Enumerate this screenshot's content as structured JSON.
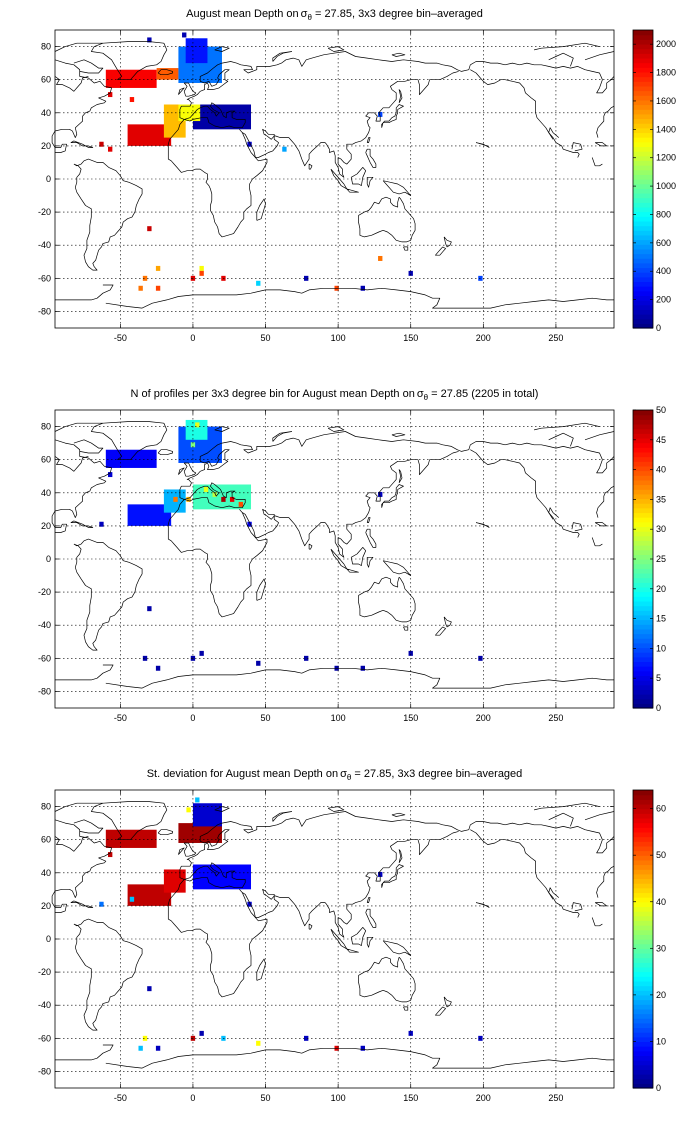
{
  "chart_data": [
    {
      "type": "heatmap",
      "id": "mean",
      "title_main": "August mean Depth on",
      "title_sigma": "σ",
      "title_sub": "θ",
      "title_rest": " = 27.85, 3x3 degree bin–averaged",
      "xlim": [
        -95,
        290
      ],
      "ylim": [
        -90,
        90
      ],
      "xticks": [
        -50,
        0,
        50,
        100,
        150,
        200,
        250
      ],
      "yticks": [
        -80,
        -60,
        -40,
        -20,
        0,
        20,
        40,
        60,
        80
      ],
      "grid": true,
      "colorbar": {
        "min": 0,
        "max": 2100,
        "ticks": [
          0,
          200,
          400,
          600,
          800,
          1000,
          1200,
          1400,
          1600,
          1800,
          2000
        ],
        "colormap": "jet"
      },
      "blocks": [
        {
          "lon": [
            -60,
            -25
          ],
          "lat": [
            55,
            66
          ],
          "value": 1850
        },
        {
          "lon": [
            -25,
            -10
          ],
          "lat": [
            60,
            67
          ],
          "value": 1650
        },
        {
          "lon": [
            -10,
            20
          ],
          "lat": [
            58,
            80
          ],
          "value": 500
        },
        {
          "lon": [
            -5,
            10
          ],
          "lat": [
            70,
            85
          ],
          "value": 300
        },
        {
          "lon": [
            -45,
            -15
          ],
          "lat": [
            20,
            33
          ],
          "value": 1900
        },
        {
          "lon": [
            -20,
            -5
          ],
          "lat": [
            25,
            45
          ],
          "value": 1450
        },
        {
          "lon": [
            0,
            40
          ],
          "lat": [
            30,
            45
          ],
          "value": 80
        },
        {
          "lon": [
            -10,
            5
          ],
          "lat": [
            35,
            45
          ],
          "value": 1300
        }
      ],
      "cells": [
        {
          "lon": -57,
          "lat": 51,
          "value": 1900
        },
        {
          "lon": -42,
          "lat": 48,
          "value": 1800
        },
        {
          "lon": -63,
          "lat": 21,
          "value": 1950
        },
        {
          "lon": -57,
          "lat": 18,
          "value": 1900
        },
        {
          "lon": 27,
          "lat": 39,
          "value": 60
        },
        {
          "lon": 63,
          "lat": 18,
          "value": 600
        },
        {
          "lon": 39,
          "lat": 21,
          "value": 150
        },
        {
          "lon": 129,
          "lat": 39,
          "value": 400
        },
        {
          "lon": -30,
          "lat": -30,
          "value": 1950
        },
        {
          "lon": 129,
          "lat": -48,
          "value": 1600
        },
        {
          "lon": 6,
          "lat": -54,
          "value": 1300
        },
        {
          "lon": 6,
          "lat": -57,
          "value": 1700
        },
        {
          "lon": 0,
          "lat": -60,
          "value": 1900
        },
        {
          "lon": 21,
          "lat": -60,
          "value": 1900
        },
        {
          "lon": -33,
          "lat": -60,
          "value": 1600
        },
        {
          "lon": -24,
          "lat": -54,
          "value": 1500
        },
        {
          "lon": -36,
          "lat": -66,
          "value": 1600
        },
        {
          "lon": -24,
          "lat": -66,
          "value": 1700
        },
        {
          "lon": 45,
          "lat": -63,
          "value": 700
        },
        {
          "lon": 78,
          "lat": -60,
          "value": 100
        },
        {
          "lon": 99,
          "lat": -66,
          "value": 1700
        },
        {
          "lon": 117,
          "lat": -66,
          "value": 100
        },
        {
          "lon": 150,
          "lat": -57,
          "value": 100
        },
        {
          "lon": 198,
          "lat": -60,
          "value": 400
        },
        {
          "lon": -30,
          "lat": 84,
          "value": 100
        },
        {
          "lon": -6,
          "lat": 87,
          "value": 100
        }
      ]
    },
    {
      "type": "heatmap",
      "id": "count",
      "title_main": "N of profiles per 3x3 degree bin for August mean Depth on",
      "title_sigma": "σ",
      "title_sub": "θ",
      "title_rest": " = 27.85 (2205 in total)",
      "xlim": [
        -95,
        290
      ],
      "ylim": [
        -90,
        90
      ],
      "xticks": [
        -50,
        0,
        50,
        100,
        150,
        200,
        250
      ],
      "yticks": [
        -80,
        -60,
        -40,
        -20,
        0,
        20,
        40,
        60,
        80
      ],
      "grid": true,
      "colorbar": {
        "min": 0,
        "max": 50,
        "ticks": [
          0,
          5,
          10,
          15,
          20,
          25,
          30,
          35,
          40,
          45,
          50
        ],
        "colormap": "jet"
      },
      "blocks": [
        {
          "lon": [
            -60,
            -25
          ],
          "lat": [
            55,
            66
          ],
          "value": 6
        },
        {
          "lon": [
            -10,
            20
          ],
          "lat": [
            58,
            80
          ],
          "value": 10
        },
        {
          "lon": [
            -5,
            10
          ],
          "lat": [
            72,
            84
          ],
          "value": 20
        },
        {
          "lon": [
            -45,
            -15
          ],
          "lat": [
            20,
            33
          ],
          "value": 7
        },
        {
          "lon": [
            -20,
            -5
          ],
          "lat": [
            28,
            42
          ],
          "value": 15
        },
        {
          "lon": [
            0,
            40
          ],
          "lat": [
            30,
            45
          ],
          "value": 22
        }
      ],
      "cells": [
        {
          "lon": -3,
          "lat": 36,
          "value": 35
        },
        {
          "lon": 9,
          "lat": 42,
          "value": 30
        },
        {
          "lon": 21,
          "lat": 36,
          "value": 48
        },
        {
          "lon": 27,
          "lat": 36,
          "value": 45
        },
        {
          "lon": 33,
          "lat": 33,
          "value": 40
        },
        {
          "lon": 15,
          "lat": 39,
          "value": 28
        },
        {
          "lon": 3,
          "lat": 81,
          "value": 30
        },
        {
          "lon": 0,
          "lat": 69,
          "value": 25
        },
        {
          "lon": -12,
          "lat": 36,
          "value": 38
        },
        {
          "lon": -57,
          "lat": 51,
          "value": 4
        },
        {
          "lon": -63,
          "lat": 21,
          "value": 3
        },
        {
          "lon": 39,
          "lat": 21,
          "value": 5
        },
        {
          "lon": 129,
          "lat": 39,
          "value": 3
        },
        {
          "lon": -30,
          "lat": -30,
          "value": 2
        },
        {
          "lon": 6,
          "lat": -57,
          "value": 2
        },
        {
          "lon": 0,
          "lat": -60,
          "value": 2
        },
        {
          "lon": -33,
          "lat": -60,
          "value": 2
        },
        {
          "lon": 45,
          "lat": -63,
          "value": 2
        },
        {
          "lon": 78,
          "lat": -60,
          "value": 2
        },
        {
          "lon": 99,
          "lat": -66,
          "value": 2
        },
        {
          "lon": 150,
          "lat": -57,
          "value": 2
        },
        {
          "lon": 198,
          "lat": -60,
          "value": 2
        },
        {
          "lon": -24,
          "lat": -66,
          "value": 2
        },
        {
          "lon": 117,
          "lat": -66,
          "value": 2
        }
      ]
    },
    {
      "type": "heatmap",
      "id": "std",
      "title_main": "St. deviation for August mean Depth on",
      "title_sigma": "σ",
      "title_sub": "θ",
      "title_rest": " = 27.85, 3x3 degree bin–averaged",
      "xlim": [
        -95,
        290
      ],
      "ylim": [
        -90,
        90
      ],
      "xticks": [
        -50,
        0,
        50,
        100,
        150,
        200,
        250
      ],
      "yticks": [
        -80,
        -60,
        -40,
        -20,
        0,
        20,
        40,
        60,
        80
      ],
      "grid": true,
      "colorbar": {
        "min": 0,
        "max": 64,
        "ticks": [
          0,
          10,
          20,
          30,
          40,
          50,
          60
        ],
        "colormap": "jet"
      },
      "blocks": [
        {
          "lon": [
            -60,
            -25
          ],
          "lat": [
            55,
            66
          ],
          "value": 60
        },
        {
          "lon": [
            -10,
            20
          ],
          "lat": [
            58,
            70
          ],
          "value": 62
        },
        {
          "lon": [
            0,
            20
          ],
          "lat": [
            68,
            82
          ],
          "value": 5
        },
        {
          "lon": [
            -45,
            -15
          ],
          "lat": [
            20,
            33
          ],
          "value": 60
        },
        {
          "lon": [
            -20,
            -5
          ],
          "lat": [
            28,
            42
          ],
          "value": 58
        },
        {
          "lon": [
            0,
            40
          ],
          "lat": [
            30,
            45
          ],
          "value": 8
        }
      ],
      "cells": [
        {
          "lon": 3,
          "lat": 84,
          "value": 20
        },
        {
          "lon": -3,
          "lat": 78,
          "value": 40
        },
        {
          "lon": -57,
          "lat": 51,
          "value": 60
        },
        {
          "lon": -63,
          "lat": 21,
          "value": 15
        },
        {
          "lon": -42,
          "lat": 24,
          "value": 20
        },
        {
          "lon": 39,
          "lat": 21,
          "value": 5
        },
        {
          "lon": 129,
          "lat": 39,
          "value": 4
        },
        {
          "lon": -30,
          "lat": -30,
          "value": 3
        },
        {
          "lon": 6,
          "lat": -57,
          "value": 3
        },
        {
          "lon": 0,
          "lat": -60,
          "value": 60
        },
        {
          "lon": 21,
          "lat": -60,
          "value": 20
        },
        {
          "lon": -33,
          "lat": -60,
          "value": 40
        },
        {
          "lon": -36,
          "lat": -66,
          "value": 20
        },
        {
          "lon": -24,
          "lat": -66,
          "value": 4
        },
        {
          "lon": 45,
          "lat": -63,
          "value": 40
        },
        {
          "lon": 78,
          "lat": -60,
          "value": 4
        },
        {
          "lon": 99,
          "lat": -66,
          "value": 58
        },
        {
          "lon": 117,
          "lat": -66,
          "value": 4
        },
        {
          "lon": 150,
          "lat": -57,
          "value": 4
        },
        {
          "lon": 198,
          "lat": -60,
          "value": 4
        }
      ]
    }
  ]
}
